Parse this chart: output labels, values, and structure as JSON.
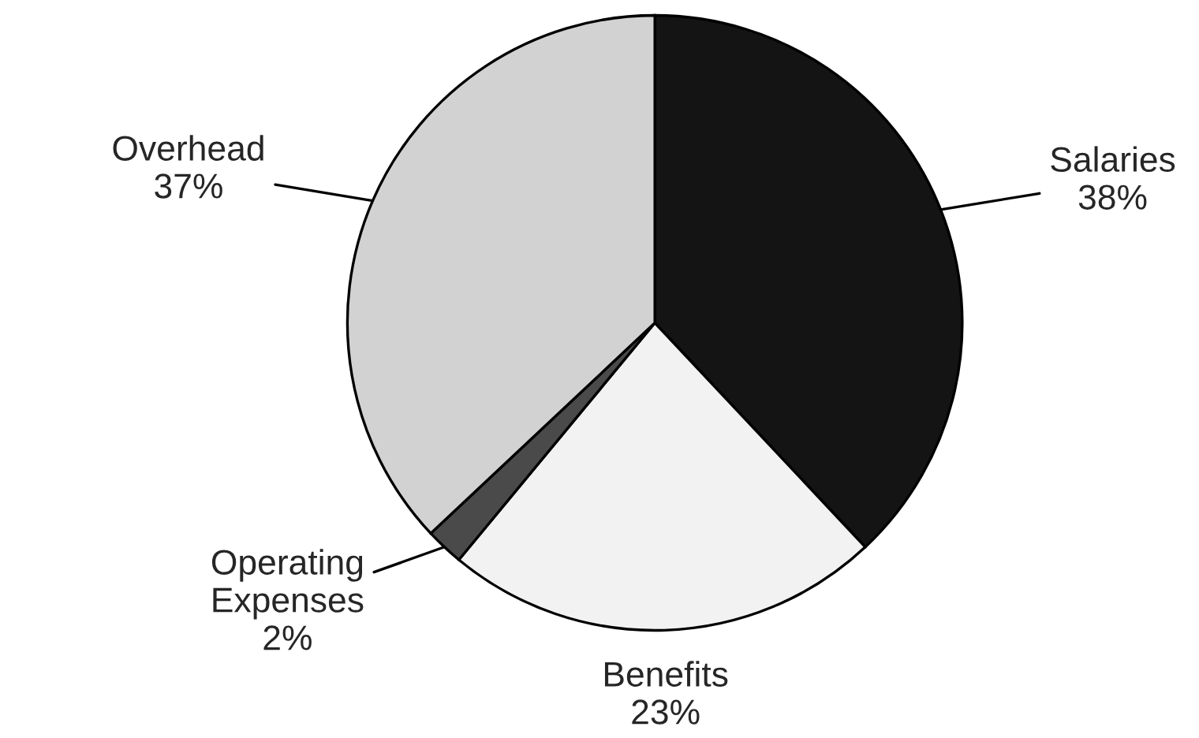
{
  "chart_data": {
    "type": "pie",
    "categories": [
      "Salaries",
      "Benefits",
      "Operating\nExpenses",
      "Overhead"
    ],
    "values": [
      38,
      23,
      2,
      37
    ],
    "value_labels": [
      "38%",
      "23%",
      "2%",
      "37%"
    ],
    "colors": [
      "#141414",
      "#f2f2f2",
      "#4a4a4a",
      "#d2d2d2"
    ]
  }
}
